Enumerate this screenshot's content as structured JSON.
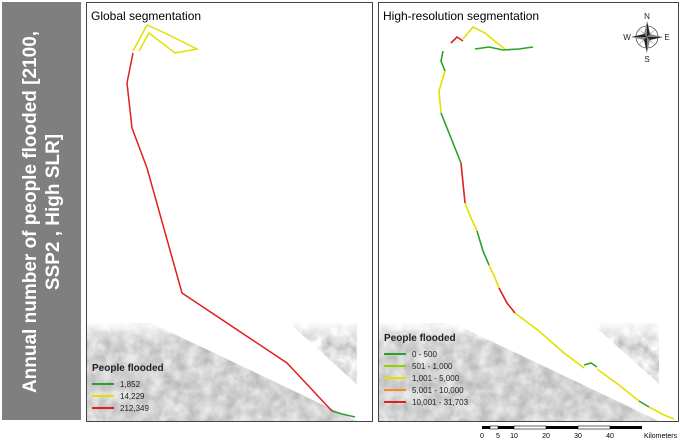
{
  "side_label": "Annual number of people flooded [2100, SSP2 , High SLR]",
  "left_panel": {
    "title": "Global segmentation",
    "legend_title": "People flooded",
    "legend": [
      {
        "label": "1,852",
        "color": "#2ca02c"
      },
      {
        "label": "14,229",
        "color": "#e3e000"
      },
      {
        "label": "212,349",
        "color": "#e02020"
      }
    ]
  },
  "right_panel": {
    "title": "High-resolution segmentation",
    "legend_title": "People flooded",
    "legend": [
      {
        "label": "0 - 500",
        "color": "#2ca02c"
      },
      {
        "label": "501 - 1,000",
        "color": "#8fd400"
      },
      {
        "label": "1,001 - 5,000",
        "color": "#e3e000"
      },
      {
        "label": "5,001 - 10,000",
        "color": "#f28c28"
      },
      {
        "label": "10,001 - 31,703",
        "color": "#e02020"
      }
    ]
  },
  "compass": {
    "n": "N",
    "s": "S",
    "e": "E",
    "w": "W"
  },
  "scale": {
    "ticks": [
      "0",
      "5",
      "10",
      "20",
      "30",
      "40"
    ],
    "unit": "Kilometers"
  }
}
